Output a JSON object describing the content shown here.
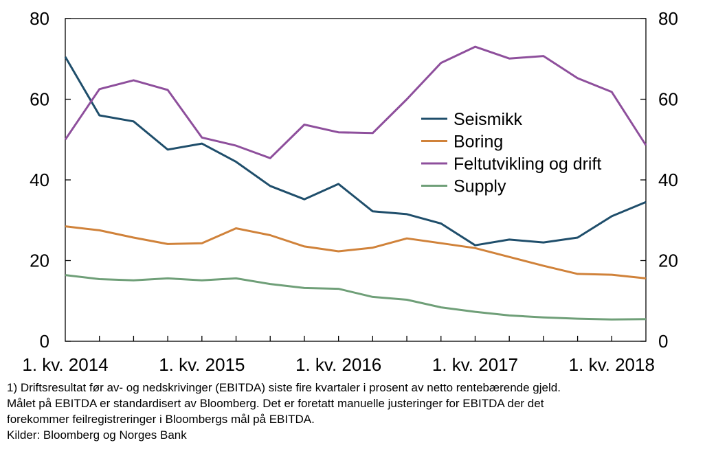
{
  "chart_data": {
    "type": "line",
    "x": [
      "2014Q1",
      "2014Q2",
      "2014Q3",
      "2014Q4",
      "2015Q1",
      "2015Q2",
      "2015Q3",
      "2015Q4",
      "2016Q1",
      "2016Q2",
      "2016Q3",
      "2016Q4",
      "2017Q1",
      "2017Q2",
      "2017Q3",
      "2017Q4",
      "2018Q1",
      "2018Q2"
    ],
    "x_tick_labels": [
      "1. kv. 2014",
      "1. kv. 2015",
      "1. kv. 2016",
      "1. kv. 2017",
      "1. kv. 2018"
    ],
    "x_tick_label_positions": [
      0,
      4,
      8,
      12,
      16
    ],
    "ylim": [
      0,
      80
    ],
    "y_ticks": [
      0,
      20,
      40,
      60,
      80
    ],
    "y_ticks_right": [
      0,
      20,
      40,
      60,
      80
    ],
    "grid": false,
    "legend_position": "center-right",
    "series": [
      {
        "name": "Seismikk",
        "color": "#1f4e6b",
        "values": [
          70.5,
          56,
          54.5,
          47.5,
          49,
          44.5,
          38.5,
          35.2,
          39,
          32.2,
          31.5,
          29.2,
          23.8,
          25.2,
          24.5,
          25.7,
          31,
          34.5
        ]
      },
      {
        "name": "Boring",
        "color": "#d0823a",
        "values": [
          28.5,
          27.5,
          25.7,
          24.1,
          24.3,
          28,
          26.3,
          23.5,
          22.3,
          23.2,
          25.5,
          24.3,
          23.1,
          20.9,
          18.7,
          16.7,
          16.5,
          15.6
        ]
      },
      {
        "name": "Feltutvikling og drift",
        "color": "#8e4f9c",
        "values": [
          50,
          62.5,
          64.7,
          62.3,
          50.5,
          48.5,
          45.4,
          53.7,
          51.8,
          51.6,
          60,
          69,
          73,
          70.1,
          70.7,
          65.2,
          61.8,
          48.6
        ]
      },
      {
        "name": "Supply",
        "color": "#6f9f78",
        "values": [
          16.4,
          15.4,
          15.1,
          15.6,
          15.1,
          15.6,
          14.2,
          13.2,
          13,
          11,
          10.3,
          8.4,
          7.3,
          6.4,
          5.9,
          5.6,
          5.4,
          5.5
        ]
      }
    ]
  },
  "notes": {
    "line1": "1) Driftsresultat før av- og nedskrivinger (EBITDA) siste fire kvartaler i prosent av netto rentebærende gjeld.",
    "line2": "Målet på EBITDA er standardisert av Bloomberg. Det er foretatt manuelle justeringer for EBITDA der det",
    "line3": "forekommer feilregistreringer i Bloombergs mål på EBITDA.",
    "source": "Kilder: Bloomberg og Norges Bank"
  }
}
